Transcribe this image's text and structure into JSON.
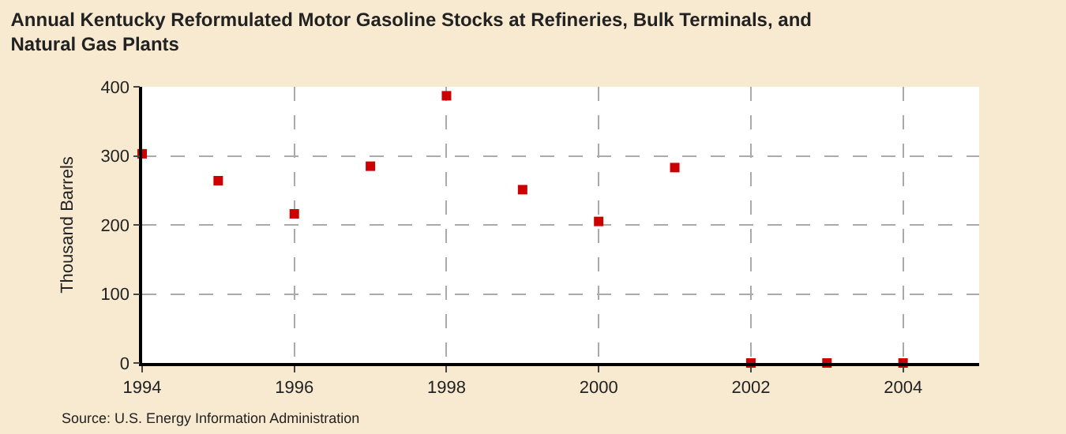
{
  "chart_data": {
    "type": "scatter",
    "title": "Annual Kentucky Reformulated Motor Gasoline Stocks at Refineries, Bulk Terminals, and Natural Gas Plants",
    "ylabel": "Thousand Barrels",
    "x": [
      1994,
      1995,
      1996,
      1997,
      1998,
      1999,
      2000,
      2001,
      2002,
      2003,
      2004
    ],
    "series": [
      {
        "color": "#cc0000",
        "values": [
          303,
          264,
          216,
          285,
          387,
          251,
          205,
          283,
          0,
          0,
          0
        ]
      }
    ],
    "xlim": [
      1994,
      2005
    ],
    "xticks": [
      1994,
      1996,
      1998,
      2000,
      2002,
      2004
    ],
    "ylim": [
      0,
      400
    ],
    "yticks": [
      0,
      100,
      200,
      300,
      400
    ],
    "grid": true,
    "marker": "square",
    "annotations": [
      "Source: U.S. Energy Information Administration"
    ]
  }
}
